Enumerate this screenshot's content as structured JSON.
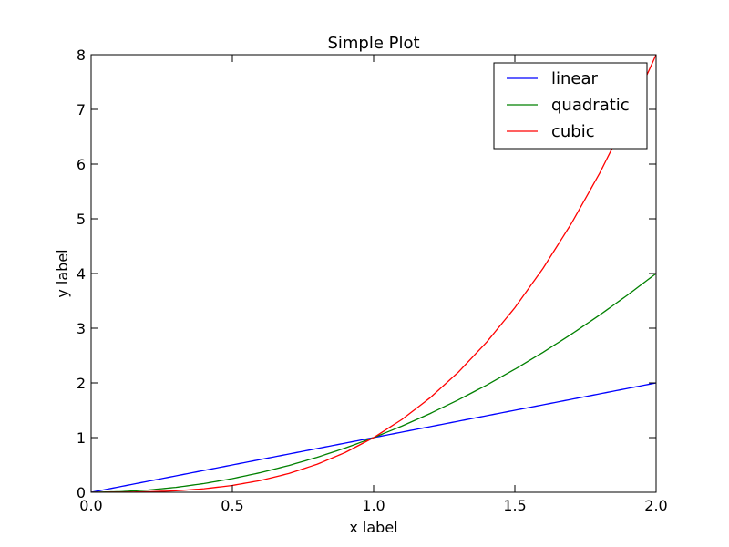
{
  "chart_data": {
    "type": "line",
    "title": "Simple Plot",
    "xlabel": "x label",
    "ylabel": "y label",
    "xlim": [
      0,
      2
    ],
    "ylim": [
      0,
      8
    ],
    "xticks": [
      0,
      0.5,
      1,
      1.5,
      2
    ],
    "xtick_labels": [
      "0.0",
      "0.5",
      "1.0",
      "1.5",
      "2.0"
    ],
    "yticks": [
      0,
      1,
      2,
      3,
      4,
      5,
      6,
      7,
      8
    ],
    "ytick_labels": [
      "0",
      "1",
      "2",
      "3",
      "4",
      "5",
      "6",
      "7",
      "8"
    ],
    "grid": false,
    "legend_position": "top-right",
    "x": [
      0.0,
      0.1,
      0.2,
      0.3,
      0.4,
      0.5,
      0.6,
      0.7,
      0.8,
      0.9,
      1.0,
      1.1,
      1.2,
      1.3,
      1.4,
      1.5,
      1.6,
      1.7,
      1.8,
      1.9,
      2.0
    ],
    "series": [
      {
        "name": "linear",
        "color": "#0000ff",
        "values": [
          0.0,
          0.1,
          0.2,
          0.3,
          0.4,
          0.5,
          0.6,
          0.7,
          0.8,
          0.9,
          1.0,
          1.1,
          1.2,
          1.3,
          1.4,
          1.5,
          1.6,
          1.7,
          1.8,
          1.9,
          2.0
        ]
      },
      {
        "name": "quadratic",
        "color": "#008000",
        "values": [
          0.0,
          0.01,
          0.04,
          0.09,
          0.16,
          0.25,
          0.36,
          0.49,
          0.64,
          0.81,
          1.0,
          1.21,
          1.44,
          1.69,
          1.96,
          2.25,
          2.56,
          2.89,
          3.24,
          3.61,
          4.0
        ]
      },
      {
        "name": "cubic",
        "color": "#ff0000",
        "values": [
          0.0,
          0.001,
          0.008,
          0.027,
          0.064,
          0.125,
          0.216,
          0.343,
          0.512,
          0.729,
          1.0,
          1.331,
          1.728,
          2.197,
          2.744,
          3.375,
          4.096,
          4.913,
          5.832,
          6.859,
          8.0
        ]
      }
    ]
  }
}
